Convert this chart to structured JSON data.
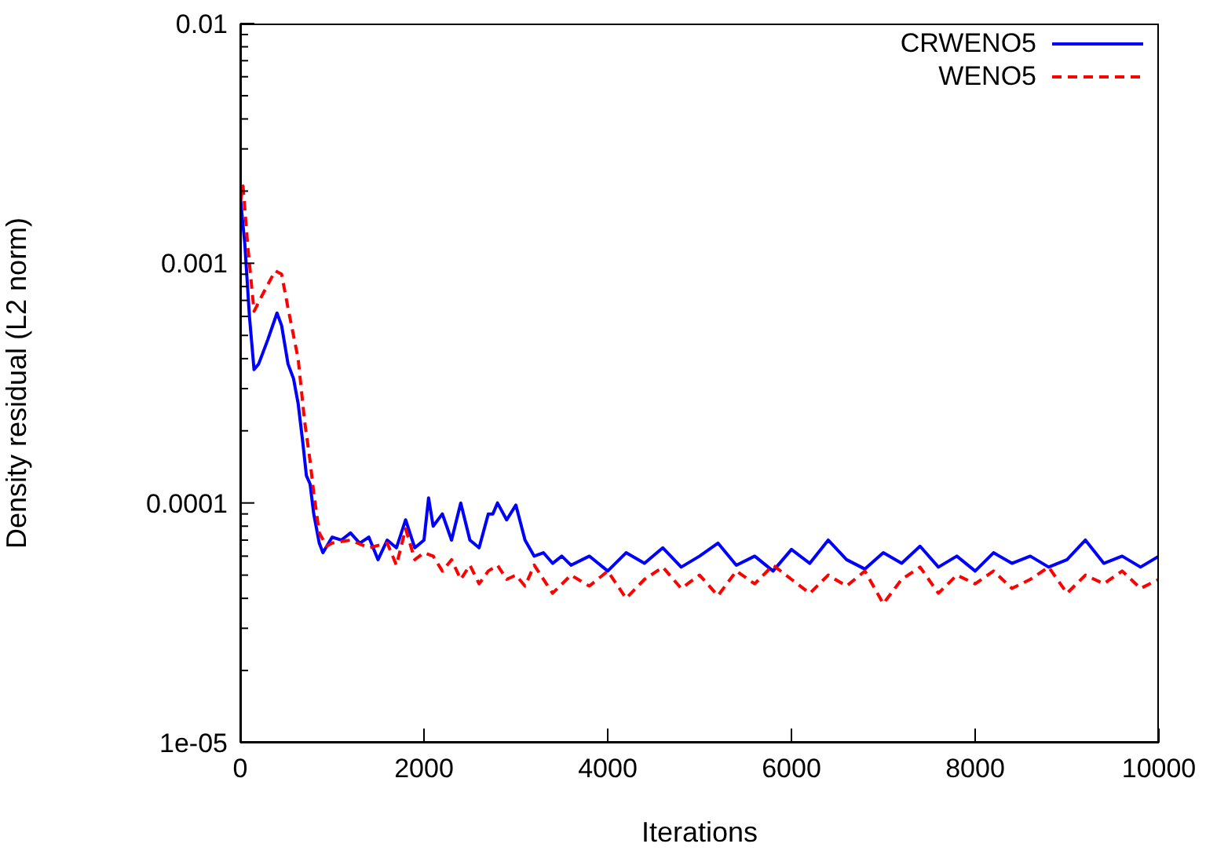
{
  "chart_data": {
    "type": "line",
    "xlabel": "Iterations",
    "ylabel": "Density residual (L2 norm)",
    "log": "y",
    "legend": "top right",
    "xlim": [
      0,
      10000
    ],
    "xticks": [
      0,
      2000,
      4000,
      6000,
      8000,
      10000
    ],
    "ylim": [
      1e-05,
      0.01
    ],
    "yticks": [
      {
        "value": 1e-05,
        "label": "1e-05"
      },
      {
        "value": 2e-05,
        "label": null
      },
      {
        "value": 3e-05,
        "label": null
      },
      {
        "value": 4e-05,
        "label": null
      },
      {
        "value": 5e-05,
        "label": null
      },
      {
        "value": 6e-05,
        "label": null
      },
      {
        "value": 7e-05,
        "label": null
      },
      {
        "value": 8e-05,
        "label": null
      },
      {
        "value": 9e-05,
        "label": null
      },
      {
        "value": 0.0001,
        "label": "0.0001"
      },
      {
        "value": 0.0002,
        "label": null
      },
      {
        "value": 0.0003,
        "label": null
      },
      {
        "value": 0.0004,
        "label": null
      },
      {
        "value": 0.0005,
        "label": null
      },
      {
        "value": 0.0006,
        "label": null
      },
      {
        "value": 0.0007,
        "label": null
      },
      {
        "value": 0.0008,
        "label": null
      },
      {
        "value": 0.0009,
        "label": null
      },
      {
        "value": 0.001,
        "label": "0.001"
      },
      {
        "value": 0.002,
        "label": null
      },
      {
        "value": 0.003,
        "label": null
      },
      {
        "value": 0.004,
        "label": null
      },
      {
        "value": 0.005,
        "label": null
      },
      {
        "value": 0.006,
        "label": null
      },
      {
        "value": 0.007,
        "label": null
      },
      {
        "value": 0.008,
        "label": null
      },
      {
        "value": 0.009,
        "label": null
      },
      {
        "value": 0.01,
        "label": "0.01"
      }
    ],
    "series": [
      {
        "name": "CRWENO5",
        "color": "#0000ff",
        "line_style": "solid",
        "x": [
          0,
          50,
          100,
          150,
          200,
          300,
          400,
          450,
          520,
          580,
          630,
          680,
          720,
          760,
          800,
          860,
          900,
          1000,
          1100,
          1200,
          1300,
          1400,
          1500,
          1600,
          1700,
          1800,
          1900,
          2000,
          2050,
          2100,
          2200,
          2300,
          2400,
          2500,
          2600,
          2700,
          2750,
          2800,
          2900,
          3000,
          3100,
          3200,
          3300,
          3400,
          3500,
          3600,
          3800,
          4000,
          4200,
          4400,
          4600,
          4800,
          5000,
          5200,
          5400,
          5600,
          5800,
          6000,
          6200,
          6400,
          6600,
          6800,
          7000,
          7200,
          7400,
          7600,
          7800,
          8000,
          8200,
          8400,
          8600,
          8800,
          9000,
          9200,
          9400,
          9600,
          9800,
          10000
        ],
        "values": [
          0.0019,
          0.0012,
          0.0006,
          0.00036,
          0.00038,
          0.00048,
          0.00062,
          0.00055,
          0.00038,
          0.00033,
          0.00026,
          0.00018,
          0.00013,
          0.00012,
          9e-05,
          6.8e-05,
          6.2e-05,
          7.2e-05,
          7e-05,
          7.5e-05,
          6.8e-05,
          7.2e-05,
          5.8e-05,
          7e-05,
          6.5e-05,
          8.5e-05,
          6.5e-05,
          7e-05,
          0.000105,
          8e-05,
          9e-05,
          7e-05,
          0.0001,
          7e-05,
          6.5e-05,
          9e-05,
          9e-05,
          0.0001,
          8.5e-05,
          9.8e-05,
          7e-05,
          6e-05,
          6.2e-05,
          5.6e-05,
          6e-05,
          5.5e-05,
          6e-05,
          5.2e-05,
          6.2e-05,
          5.6e-05,
          6.5e-05,
          5.4e-05,
          6e-05,
          6.8e-05,
          5.5e-05,
          6e-05,
          5.2e-05,
          6.4e-05,
          5.6e-05,
          7e-05,
          5.8e-05,
          5.3e-05,
          6.2e-05,
          5.6e-05,
          6.6e-05,
          5.4e-05,
          6e-05,
          5.2e-05,
          6.2e-05,
          5.6e-05,
          6e-05,
          5.4e-05,
          5.8e-05,
          7e-05,
          5.6e-05,
          6e-05,
          5.4e-05,
          6e-05
        ]
      },
      {
        "name": "WENO5",
        "color": "#ff0000",
        "line_style": "dashed",
        "x": [
          0,
          30,
          80,
          150,
          250,
          380,
          450,
          520,
          630,
          700,
          760,
          800,
          860,
          940,
          1000,
          1200,
          1400,
          1600,
          1700,
          1800,
          1900,
          2000,
          2100,
          2200,
          2300,
          2400,
          2500,
          2600,
          2700,
          2800,
          2900,
          3000,
          3100,
          3200,
          3400,
          3600,
          3800,
          4000,
          4200,
          4400,
          4600,
          4800,
          5000,
          5200,
          5400,
          5600,
          5800,
          6000,
          6200,
          6400,
          6600,
          6800,
          7000,
          7200,
          7400,
          7600,
          7800,
          8000,
          8200,
          8400,
          8600,
          8800,
          9000,
          9200,
          9400,
          9600,
          9800,
          10000
        ],
        "values": [
          0.0018,
          0.0021,
          0.0012,
          0.00063,
          0.00075,
          0.00093,
          0.0009,
          0.00065,
          0.0004,
          0.00022,
          0.00015,
          0.00011,
          7.5e-05,
          6.6e-05,
          6.8e-05,
          7e-05,
          6.5e-05,
          6.8e-05,
          5.5e-05,
          7.8e-05,
          5.8e-05,
          6.2e-05,
          6e-05,
          5.2e-05,
          5.8e-05,
          4.8e-05,
          5.5e-05,
          4.6e-05,
          5.2e-05,
          5.5e-05,
          4.8e-05,
          5e-05,
          4.5e-05,
          5.5e-05,
          4.2e-05,
          5e-05,
          4.5e-05,
          5.2e-05,
          4e-05,
          4.8e-05,
          5.4e-05,
          4.4e-05,
          5e-05,
          4.1e-05,
          5.2e-05,
          4.6e-05,
          5.5e-05,
          4.8e-05,
          4.2e-05,
          5e-05,
          4.5e-05,
          5.2e-05,
          3.8e-05,
          4.8e-05,
          5.4e-05,
          4.2e-05,
          5e-05,
          4.6e-05,
          5.2e-05,
          4.4e-05,
          4.8e-05,
          5.4e-05,
          4.2e-05,
          5e-05,
          4.6e-05,
          5.2e-05,
          4.4e-05,
          4.8e-05
        ]
      }
    ]
  }
}
